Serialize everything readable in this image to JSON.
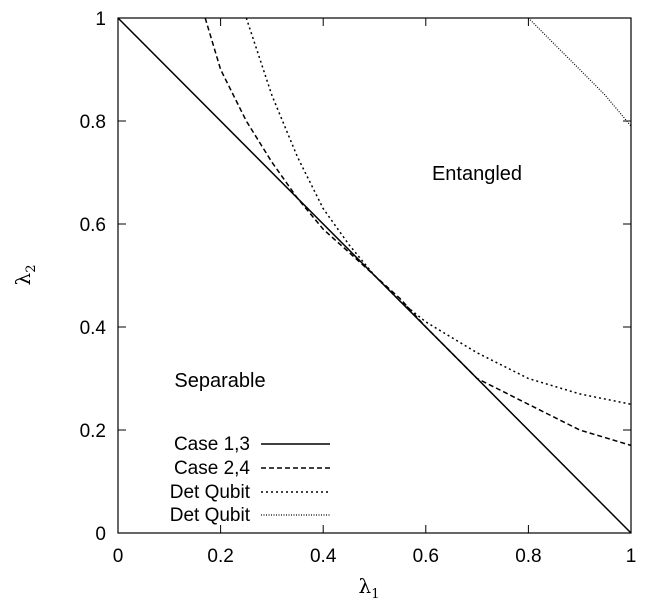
{
  "chart_data": {
    "type": "line",
    "title": "",
    "xlabel": "λ",
    "xlabel_subscript": "1",
    "ylabel": "λ",
    "ylabel_subscript": "2",
    "xlim": [
      0,
      1
    ],
    "ylim": [
      0,
      1
    ],
    "x_ticks": [
      "0",
      "0.2",
      "0.4",
      "0.6",
      "0.8",
      "1"
    ],
    "y_ticks": [
      "0",
      "0.2",
      "0.4",
      "0.6",
      "0.8",
      "1"
    ],
    "grid": false,
    "legend_position": "bottom-left",
    "annotations": [
      {
        "text": "Entangled",
        "x": 0.8,
        "y": 0.7
      },
      {
        "text": "Separable",
        "x": 0.2,
        "y": 0.3
      }
    ],
    "series": [
      {
        "name": "Case 1,3",
        "style": "solid",
        "points": [
          [
            0,
            1
          ],
          [
            1,
            0
          ]
        ]
      },
      {
        "name": "Case 2,4",
        "style": "dashed",
        "points": [
          [
            0.17,
            1.0
          ],
          [
            0.2,
            0.9
          ],
          [
            0.25,
            0.8
          ],
          [
            0.3,
            0.72
          ],
          [
            0.35,
            0.65
          ],
          [
            0.4,
            0.59
          ],
          [
            0.45,
            0.545
          ],
          [
            0.5,
            0.5
          ],
          [
            0.55,
            0.455
          ],
          [
            0.6,
            0.4
          ],
          [
            0.7,
            0.3
          ],
          [
            0.8,
            0.25
          ],
          [
            0.9,
            0.2
          ],
          [
            1.0,
            0.17
          ]
        ]
      },
      {
        "name": "Det Qubit",
        "style": "dotted",
        "points": [
          [
            0.25,
            1.0
          ],
          [
            0.3,
            0.85
          ],
          [
            0.35,
            0.73
          ],
          [
            0.4,
            0.63
          ],
          [
            0.45,
            0.56
          ],
          [
            0.5,
            0.5
          ],
          [
            0.55,
            0.45
          ],
          [
            0.6,
            0.41
          ],
          [
            0.7,
            0.35
          ],
          [
            0.8,
            0.3
          ],
          [
            0.9,
            0.27
          ],
          [
            1.0,
            0.25
          ]
        ]
      },
      {
        "name": "Det Qubit",
        "style": "fine-dotted",
        "points": [
          [
            0.8,
            1.0
          ],
          [
            0.85,
            0.95
          ],
          [
            0.9,
            0.9
          ],
          [
            0.95,
            0.85
          ],
          [
            1.0,
            0.79
          ]
        ]
      }
    ]
  }
}
